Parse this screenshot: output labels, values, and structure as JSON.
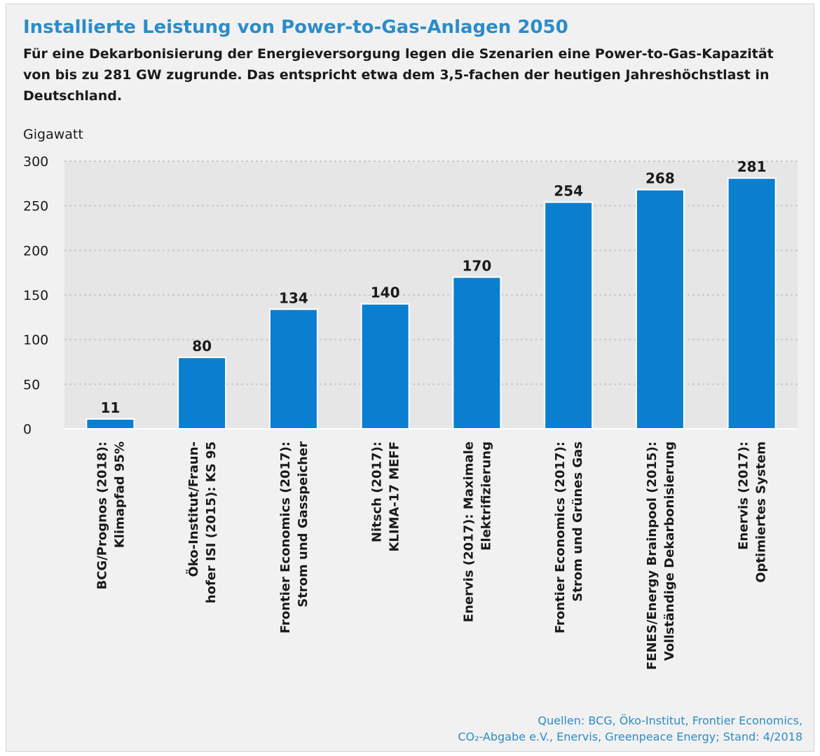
{
  "title": "Installierte Leistung von Power-to-Gas-Anlagen 2050",
  "subtitle": "Für eine Dekarbonisierung der Energieversorgung legen die Szenarien eine Power-to-Gas-Kapazität von bis zu 281 GW zugrunde. Das entspricht etwa dem 3,5-fachen der heutigen Jahreshöchstlast in Deutschland.",
  "unit_label": "Gigawatt",
  "source": {
    "line1": "Quellen: BCG, Öko-Institut, Frontier Economics,",
    "line2": "CO₂-Abgabe e.V., Enervis, Greenpeace Energy; Stand: 4/2018"
  },
  "colors": {
    "bar": "#0a7fcf",
    "title": "#2c8cc8",
    "plot_bg": "#e6e6e6",
    "grid": "#c8c8c8"
  },
  "chart_data": {
    "type": "bar",
    "title": "Installierte Leistung von Power-to-Gas-Anlagen 2050",
    "ylabel": "Gigawatt",
    "xlabel": "",
    "ylim": [
      0,
      300
    ],
    "yticks": [
      0,
      50,
      100,
      150,
      200,
      250,
      300
    ],
    "grid": true,
    "categories": [
      [
        "BCG/Prognos (2018):",
        "Klimapfad 95%"
      ],
      [
        "Öko-Institut/Fraun-",
        "hofer ISI (2015): KS 95"
      ],
      [
        "Frontier Economics (2017):",
        "Strom und Gasspeicher"
      ],
      [
        "Nitsch (2017):",
        "KLIMA-17 MEFF"
      ],
      [
        "Enervis (2017): Maximale",
        "Elektrifizierung"
      ],
      [
        "Frontier Economics (2017):",
        "Strom und Grünes Gas"
      ],
      [
        "FENES/Energy Brainpool (2015):",
        "Vollständige Dekarbonisierung"
      ],
      [
        "Enervis (2017):",
        "Optimiertes System"
      ]
    ],
    "values": [
      11,
      80,
      134,
      140,
      170,
      254,
      268,
      281
    ]
  }
}
